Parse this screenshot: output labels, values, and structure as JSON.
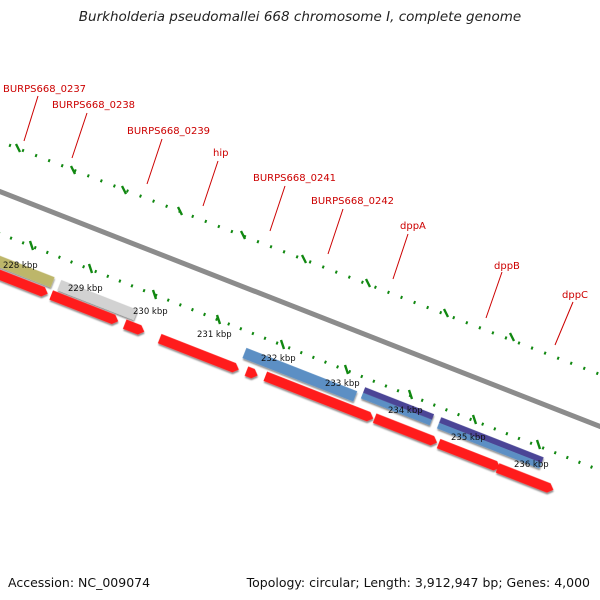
{
  "title": "Burkholderia pseudomallei 668 chromosome I, complete genome",
  "footer": {
    "accession_label": "Accession: NC_009074",
    "topology_label": "Topology: circular; Length: 3,912,947 bp; Genes: 4,000"
  },
  "scale": {
    "ticks": [
      "228 kbp",
      "229 kbp",
      "230 kbp",
      "231 kbp",
      "232 kbp",
      "233 kbp",
      "234 kbp",
      "235 kbp",
      "236 kbp"
    ]
  },
  "genes": [
    {
      "label": "BURPS668_0237"
    },
    {
      "label": "BURPS668_0238"
    },
    {
      "label": "BURPS668_0239"
    },
    {
      "label": "hip"
    },
    {
      "label": "BURPS668_0241"
    },
    {
      "label": "BURPS668_0242"
    },
    {
      "label": "dppA"
    },
    {
      "label": "dppB"
    },
    {
      "label": "dppC"
    }
  ],
  "colors": {
    "gene_red": "#ff1a1a",
    "label_red": "#cc0000",
    "backbone": "#8c8c8c",
    "tick_green": "#118811",
    "feature_khaki": "#bdb66a",
    "feature_gray": "#d2d2d2",
    "feature_blue": "#5b8fc4",
    "feature_indigo": "#4b4596"
  }
}
